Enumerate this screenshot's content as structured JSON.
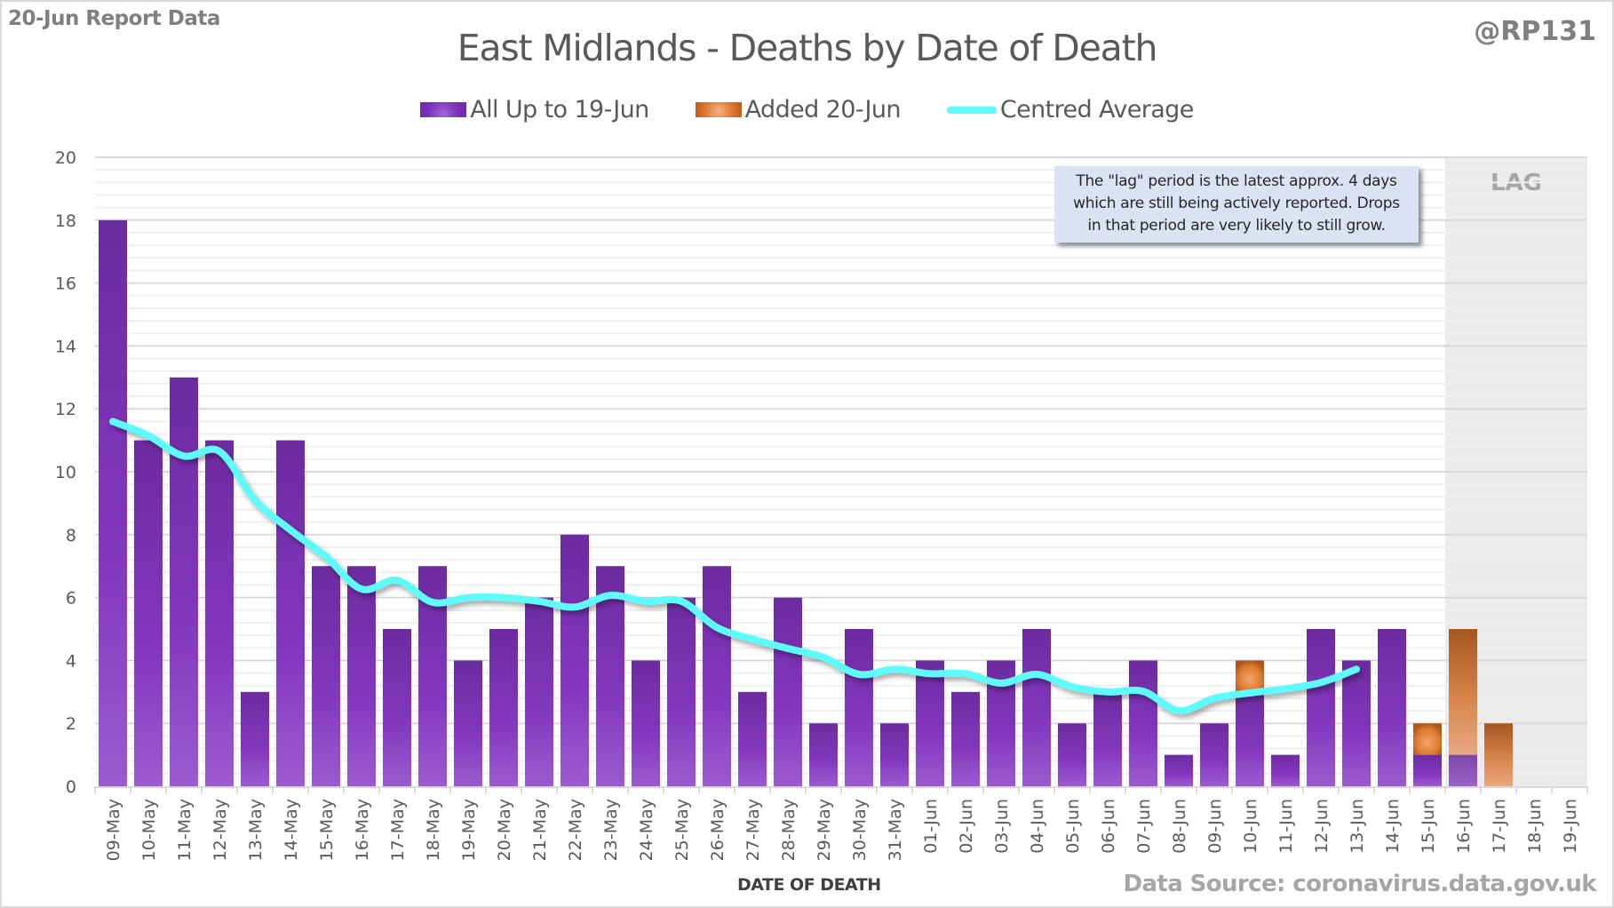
{
  "header": {
    "report_label": "20-Jun Report Data",
    "handle": "@RP131"
  },
  "footer": {
    "source": "Data Source: coronavirus.data.gov.uk"
  },
  "annotation": {
    "lines": [
      "The \"lag\" period is the latest approx. 4 days",
      "which are still being actively reported.  Drops",
      "in that period are very likely to still grow."
    ],
    "lag_label": "LAG",
    "lag_start": "16-Jun",
    "lag_end": "19-Jun"
  },
  "colors": {
    "all_up_to": "#7a2fb8",
    "added": "#e07830",
    "centred_average": "#5ffbfb",
    "lag_shade": "#ebebeb",
    "annotation_bg": "#dae3f3"
  },
  "chart_data": {
    "type": "bar",
    "stacked": true,
    "title": "East Midlands - Deaths by Date of Death",
    "xlabel": "DATE OF DEATH",
    "ylabel": "",
    "ylim": [
      0,
      20
    ],
    "yticks": [
      0,
      2,
      4,
      6,
      8,
      10,
      12,
      14,
      16,
      18,
      20
    ],
    "grid": true,
    "legend_position": "top",
    "categories": [
      "09-May",
      "10-May",
      "11-May",
      "12-May",
      "13-May",
      "14-May",
      "15-May",
      "16-May",
      "17-May",
      "18-May",
      "19-May",
      "20-May",
      "21-May",
      "22-May",
      "23-May",
      "24-May",
      "25-May",
      "26-May",
      "27-May",
      "28-May",
      "29-May",
      "30-May",
      "31-May",
      "01-Jun",
      "02-Jun",
      "03-Jun",
      "04-Jun",
      "05-Jun",
      "06-Jun",
      "07-Jun",
      "08-Jun",
      "09-Jun",
      "10-Jun",
      "11-Jun",
      "12-Jun",
      "13-Jun",
      "14-Jun",
      "15-Jun",
      "16-Jun",
      "17-Jun",
      "18-Jun",
      "19-Jun"
    ],
    "series": [
      {
        "name": "All Up to 19-Jun",
        "kind": "bar",
        "values": [
          18,
          11,
          13,
          11,
          3,
          11,
          7,
          7,
          5,
          7,
          4,
          5,
          6,
          8,
          7,
          4,
          6,
          7,
          3,
          6,
          2,
          5,
          2,
          4,
          3,
          4,
          5,
          2,
          3,
          4,
          1,
          2,
          3,
          1,
          5,
          4,
          5,
          1,
          1,
          0,
          0,
          0
        ]
      },
      {
        "name": "Added 20-Jun",
        "kind": "bar",
        "values": [
          0,
          0,
          0,
          0,
          0,
          0,
          0,
          0,
          0,
          0,
          0,
          0,
          0,
          0,
          0,
          0,
          0,
          0,
          0,
          0,
          0,
          0,
          0,
          0,
          0,
          0,
          0,
          0,
          0,
          0,
          0,
          0,
          1,
          0,
          0,
          0,
          0,
          1,
          4,
          2,
          0,
          0
        ]
      },
      {
        "name": "Centred Average",
        "kind": "line",
        "values": [
          11.6,
          11.15,
          10.5,
          10.65,
          9.1,
          8.15,
          7.3,
          6.27,
          6.55,
          5.85,
          6.0,
          6.0,
          5.88,
          5.7,
          6.07,
          5.88,
          5.88,
          5.05,
          4.68,
          4.38,
          4.1,
          3.56,
          3.72,
          3.58,
          3.58,
          3.28,
          3.56,
          3.16,
          3.0,
          3.02,
          2.4,
          2.8,
          2.97,
          3.1,
          3.3,
          3.72,
          null,
          null,
          null,
          null,
          null,
          null
        ]
      }
    ]
  }
}
